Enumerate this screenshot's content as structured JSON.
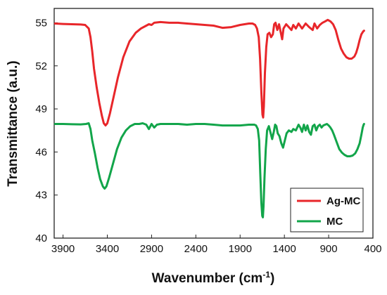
{
  "chart_data": {
    "type": "line",
    "title": "",
    "xlabel": "Wavenumber (cm",
    "xlabel_sup": "-1",
    "xlabel_suffix": ")",
    "ylabel": "Transmittance (a.u.)",
    "xlim": [
      4000,
      400
    ],
    "ylim": [
      40,
      56
    ],
    "x_reversed": true,
    "x_ticks": [
      3900,
      3400,
      2900,
      2400,
      1900,
      1400,
      900,
      400
    ],
    "y_ticks": [
      40,
      43,
      46,
      49,
      52,
      55
    ],
    "grid": false,
    "legend_position": "bottom-right",
    "series": [
      {
        "name": "Ag-MC",
        "color": "#e8262a",
        "points": [
          [
            3990,
            54.95
          ],
          [
            3900,
            54.92
          ],
          [
            3800,
            54.9
          ],
          [
            3700,
            54.88
          ],
          [
            3650,
            54.85
          ],
          [
            3610,
            54.6
          ],
          [
            3590,
            54.0
          ],
          [
            3570,
            53.0
          ],
          [
            3550,
            51.8
          ],
          [
            3520,
            50.5
          ],
          [
            3490,
            49.4
          ],
          [
            3460,
            48.5
          ],
          [
            3440,
            48.0
          ],
          [
            3420,
            47.85
          ],
          [
            3400,
            48.0
          ],
          [
            3370,
            48.7
          ],
          [
            3330,
            49.8
          ],
          [
            3280,
            51.2
          ],
          [
            3220,
            52.6
          ],
          [
            3150,
            53.7
          ],
          [
            3080,
            54.3
          ],
          [
            3020,
            54.6
          ],
          [
            2960,
            54.8
          ],
          [
            2930,
            54.9
          ],
          [
            2900,
            54.85
          ],
          [
            2870,
            55.0
          ],
          [
            2800,
            55.05
          ],
          [
            2700,
            55.0
          ],
          [
            2600,
            55.0
          ],
          [
            2500,
            54.95
          ],
          [
            2400,
            54.9
          ],
          [
            2300,
            54.85
          ],
          [
            2200,
            54.8
          ],
          [
            2100,
            54.65
          ],
          [
            2000,
            54.7
          ],
          [
            1900,
            54.85
          ],
          [
            1800,
            54.95
          ],
          [
            1760,
            54.95
          ],
          [
            1730,
            54.85
          ],
          [
            1710,
            54.6
          ],
          [
            1690,
            54.0
          ],
          [
            1675,
            52.5
          ],
          [
            1660,
            50.2
          ],
          [
            1648,
            48.6
          ],
          [
            1640,
            48.4
          ],
          [
            1632,
            49.2
          ],
          [
            1620,
            51.5
          ],
          [
            1605,
            53.3
          ],
          [
            1590,
            54.2
          ],
          [
            1570,
            54.3
          ],
          [
            1550,
            54.0
          ],
          [
            1530,
            54.2
          ],
          [
            1515,
            54.9
          ],
          [
            1500,
            55.0
          ],
          [
            1480,
            54.5
          ],
          [
            1460,
            54.9
          ],
          [
            1440,
            54.3
          ],
          [
            1425,
            53.85
          ],
          [
            1410,
            54.6
          ],
          [
            1380,
            54.9
          ],
          [
            1350,
            54.7
          ],
          [
            1320,
            54.5
          ],
          [
            1300,
            54.85
          ],
          [
            1270,
            54.6
          ],
          [
            1240,
            54.95
          ],
          [
            1200,
            54.6
          ],
          [
            1160,
            54.95
          ],
          [
            1120,
            54.7
          ],
          [
            1080,
            54.5
          ],
          [
            1060,
            54.95
          ],
          [
            1030,
            54.6
          ],
          [
            1000,
            54.85
          ],
          [
            970,
            55.0
          ],
          [
            940,
            55.1
          ],
          [
            910,
            55.2
          ],
          [
            880,
            55.1
          ],
          [
            850,
            54.9
          ],
          [
            820,
            54.5
          ],
          [
            790,
            53.8
          ],
          [
            760,
            53.2
          ],
          [
            730,
            52.85
          ],
          [
            700,
            52.6
          ],
          [
            670,
            52.5
          ],
          [
            640,
            52.5
          ],
          [
            610,
            52.65
          ],
          [
            590,
            52.9
          ],
          [
            570,
            53.3
          ],
          [
            550,
            53.8
          ],
          [
            530,
            54.2
          ],
          [
            510,
            54.4
          ],
          [
            500,
            54.45
          ]
        ]
      },
      {
        "name": "MC",
        "color": "#12a54a",
        "points": [
          [
            3990,
            47.95
          ],
          [
            3900,
            47.95
          ],
          [
            3800,
            47.93
          ],
          [
            3700,
            47.92
          ],
          [
            3640,
            47.95
          ],
          [
            3610,
            48.0
          ],
          [
            3590,
            47.6
          ],
          [
            3570,
            46.8
          ],
          [
            3540,
            45.9
          ],
          [
            3510,
            44.9
          ],
          [
            3480,
            44.1
          ],
          [
            3450,
            43.6
          ],
          [
            3430,
            43.45
          ],
          [
            3410,
            43.6
          ],
          [
            3380,
            44.2
          ],
          [
            3340,
            45.1
          ],
          [
            3290,
            46.2
          ],
          [
            3240,
            47.0
          ],
          [
            3190,
            47.5
          ],
          [
            3140,
            47.8
          ],
          [
            3090,
            47.95
          ],
          [
            3040,
            47.95
          ],
          [
            3000,
            48.0
          ],
          [
            2960,
            47.9
          ],
          [
            2930,
            47.6
          ],
          [
            2900,
            47.95
          ],
          [
            2870,
            47.7
          ],
          [
            2840,
            47.9
          ],
          [
            2800,
            47.95
          ],
          [
            2700,
            47.95
          ],
          [
            2600,
            47.95
          ],
          [
            2500,
            47.9
          ],
          [
            2400,
            47.95
          ],
          [
            2300,
            47.95
          ],
          [
            2200,
            47.9
          ],
          [
            2100,
            47.85
          ],
          [
            2000,
            47.85
          ],
          [
            1900,
            47.85
          ],
          [
            1800,
            47.9
          ],
          [
            1740,
            47.9
          ],
          [
            1720,
            47.85
          ],
          [
            1700,
            47.6
          ],
          [
            1685,
            46.8
          ],
          [
            1672,
            44.5
          ],
          [
            1660,
            42.5
          ],
          [
            1650,
            41.55
          ],
          [
            1643,
            41.45
          ],
          [
            1636,
            42.2
          ],
          [
            1625,
            44.2
          ],
          [
            1610,
            46.2
          ],
          [
            1595,
            47.5
          ],
          [
            1575,
            47.8
          ],
          [
            1555,
            47.3
          ],
          [
            1538,
            46.9
          ],
          [
            1520,
            47.4
          ],
          [
            1505,
            47.9
          ],
          [
            1490,
            47.8
          ],
          [
            1475,
            47.3
          ],
          [
            1455,
            47.1
          ],
          [
            1435,
            46.6
          ],
          [
            1415,
            46.3
          ],
          [
            1395,
            46.8
          ],
          [
            1375,
            47.3
          ],
          [
            1350,
            47.5
          ],
          [
            1320,
            47.4
          ],
          [
            1300,
            47.6
          ],
          [
            1270,
            47.5
          ],
          [
            1240,
            47.9
          ],
          [
            1220,
            47.7
          ],
          [
            1200,
            47.4
          ],
          [
            1180,
            47.9
          ],
          [
            1160,
            47.5
          ],
          [
            1140,
            47.85
          ],
          [
            1120,
            47.4
          ],
          [
            1100,
            47.2
          ],
          [
            1080,
            47.8
          ],
          [
            1060,
            47.9
          ],
          [
            1040,
            47.5
          ],
          [
            1020,
            47.8
          ],
          [
            1000,
            47.9
          ],
          [
            980,
            47.7
          ],
          [
            960,
            47.85
          ],
          [
            940,
            47.9
          ],
          [
            920,
            47.95
          ],
          [
            900,
            47.85
          ],
          [
            880,
            47.7
          ],
          [
            860,
            47.5
          ],
          [
            840,
            47.2
          ],
          [
            810,
            46.7
          ],
          [
            780,
            46.2
          ],
          [
            750,
            45.95
          ],
          [
            720,
            45.8
          ],
          [
            690,
            45.7
          ],
          [
            660,
            45.7
          ],
          [
            630,
            45.75
          ],
          [
            600,
            45.9
          ],
          [
            575,
            46.2
          ],
          [
            550,
            46.6
          ],
          [
            530,
            47.2
          ],
          [
            515,
            47.7
          ],
          [
            505,
            47.9
          ],
          [
            500,
            47.95
          ]
        ]
      }
    ]
  }
}
